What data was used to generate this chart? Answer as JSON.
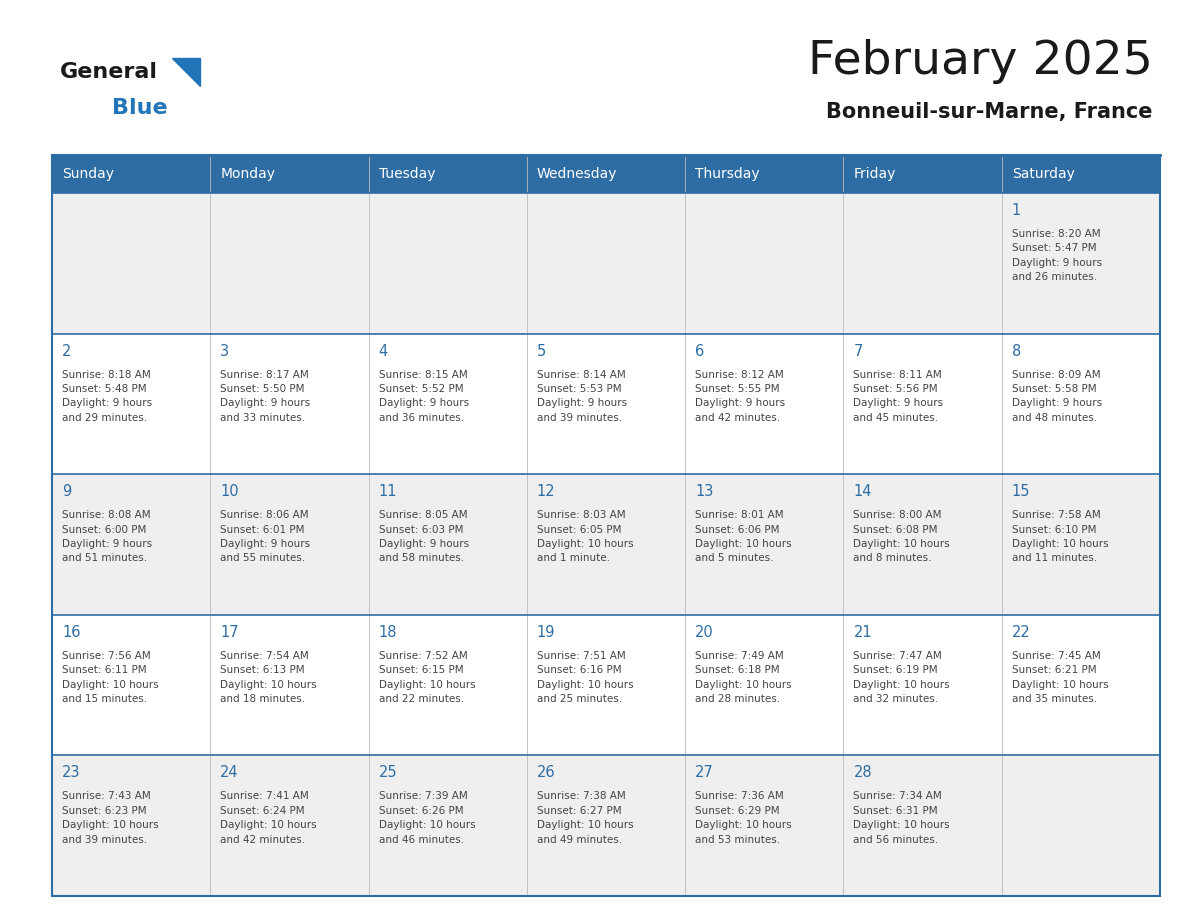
{
  "title": "February 2025",
  "subtitle": "Bonneuil-sur-Marne, France",
  "days_of_week": [
    "Sunday",
    "Monday",
    "Tuesday",
    "Wednesday",
    "Thursday",
    "Friday",
    "Saturday"
  ],
  "header_bg": "#2E6DA4",
  "header_text": "#FFFFFF",
  "cell_bg": "#EFEFEF",
  "cell_bg_alt": "#FFFFFF",
  "border_color": "#2E6DA4",
  "day_number_color": "#2E6DA4",
  "info_text_color": "#444444",
  "title_color": "#1a1a1a",
  "logo_general_color": "#1a1a1a",
  "logo_blue_color": "#2275b8",
  "weeks": [
    [
      {
        "day": null,
        "info": ""
      },
      {
        "day": null,
        "info": ""
      },
      {
        "day": null,
        "info": ""
      },
      {
        "day": null,
        "info": ""
      },
      {
        "day": null,
        "info": ""
      },
      {
        "day": null,
        "info": ""
      },
      {
        "day": 1,
        "info": "Sunrise: 8:20 AM\nSunset: 5:47 PM\nDaylight: 9 hours\nand 26 minutes."
      }
    ],
    [
      {
        "day": 2,
        "info": "Sunrise: 8:18 AM\nSunset: 5:48 PM\nDaylight: 9 hours\nand 29 minutes."
      },
      {
        "day": 3,
        "info": "Sunrise: 8:17 AM\nSunset: 5:50 PM\nDaylight: 9 hours\nand 33 minutes."
      },
      {
        "day": 4,
        "info": "Sunrise: 8:15 AM\nSunset: 5:52 PM\nDaylight: 9 hours\nand 36 minutes."
      },
      {
        "day": 5,
        "info": "Sunrise: 8:14 AM\nSunset: 5:53 PM\nDaylight: 9 hours\nand 39 minutes."
      },
      {
        "day": 6,
        "info": "Sunrise: 8:12 AM\nSunset: 5:55 PM\nDaylight: 9 hours\nand 42 minutes."
      },
      {
        "day": 7,
        "info": "Sunrise: 8:11 AM\nSunset: 5:56 PM\nDaylight: 9 hours\nand 45 minutes."
      },
      {
        "day": 8,
        "info": "Sunrise: 8:09 AM\nSunset: 5:58 PM\nDaylight: 9 hours\nand 48 minutes."
      }
    ],
    [
      {
        "day": 9,
        "info": "Sunrise: 8:08 AM\nSunset: 6:00 PM\nDaylight: 9 hours\nand 51 minutes."
      },
      {
        "day": 10,
        "info": "Sunrise: 8:06 AM\nSunset: 6:01 PM\nDaylight: 9 hours\nand 55 minutes."
      },
      {
        "day": 11,
        "info": "Sunrise: 8:05 AM\nSunset: 6:03 PM\nDaylight: 9 hours\nand 58 minutes."
      },
      {
        "day": 12,
        "info": "Sunrise: 8:03 AM\nSunset: 6:05 PM\nDaylight: 10 hours\nand 1 minute."
      },
      {
        "day": 13,
        "info": "Sunrise: 8:01 AM\nSunset: 6:06 PM\nDaylight: 10 hours\nand 5 minutes."
      },
      {
        "day": 14,
        "info": "Sunrise: 8:00 AM\nSunset: 6:08 PM\nDaylight: 10 hours\nand 8 minutes."
      },
      {
        "day": 15,
        "info": "Sunrise: 7:58 AM\nSunset: 6:10 PM\nDaylight: 10 hours\nand 11 minutes."
      }
    ],
    [
      {
        "day": 16,
        "info": "Sunrise: 7:56 AM\nSunset: 6:11 PM\nDaylight: 10 hours\nand 15 minutes."
      },
      {
        "day": 17,
        "info": "Sunrise: 7:54 AM\nSunset: 6:13 PM\nDaylight: 10 hours\nand 18 minutes."
      },
      {
        "day": 18,
        "info": "Sunrise: 7:52 AM\nSunset: 6:15 PM\nDaylight: 10 hours\nand 22 minutes."
      },
      {
        "day": 19,
        "info": "Sunrise: 7:51 AM\nSunset: 6:16 PM\nDaylight: 10 hours\nand 25 minutes."
      },
      {
        "day": 20,
        "info": "Sunrise: 7:49 AM\nSunset: 6:18 PM\nDaylight: 10 hours\nand 28 minutes."
      },
      {
        "day": 21,
        "info": "Sunrise: 7:47 AM\nSunset: 6:19 PM\nDaylight: 10 hours\nand 32 minutes."
      },
      {
        "day": 22,
        "info": "Sunrise: 7:45 AM\nSunset: 6:21 PM\nDaylight: 10 hours\nand 35 minutes."
      }
    ],
    [
      {
        "day": 23,
        "info": "Sunrise: 7:43 AM\nSunset: 6:23 PM\nDaylight: 10 hours\nand 39 minutes."
      },
      {
        "day": 24,
        "info": "Sunrise: 7:41 AM\nSunset: 6:24 PM\nDaylight: 10 hours\nand 42 minutes."
      },
      {
        "day": 25,
        "info": "Sunrise: 7:39 AM\nSunset: 6:26 PM\nDaylight: 10 hours\nand 46 minutes."
      },
      {
        "day": 26,
        "info": "Sunrise: 7:38 AM\nSunset: 6:27 PM\nDaylight: 10 hours\nand 49 minutes."
      },
      {
        "day": 27,
        "info": "Sunrise: 7:36 AM\nSunset: 6:29 PM\nDaylight: 10 hours\nand 53 minutes."
      },
      {
        "day": 28,
        "info": "Sunrise: 7:34 AM\nSunset: 6:31 PM\nDaylight: 10 hours\nand 56 minutes."
      },
      {
        "day": null,
        "info": ""
      }
    ]
  ]
}
